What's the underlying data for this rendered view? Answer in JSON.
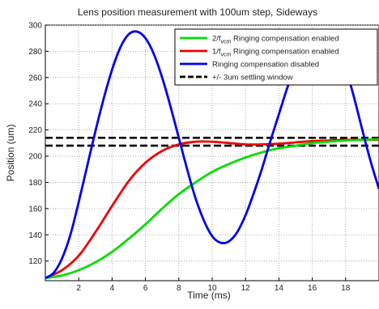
{
  "chart_data": {
    "type": "line",
    "title": "Lens position measurement with 100um step, Sideways",
    "xlabel": "Time (ms)",
    "ylabel": "Position (um)",
    "xlim": [
      0,
      20
    ],
    "ylim": [
      105,
      300
    ],
    "x_ticks": [
      2,
      4,
      6,
      8,
      10,
      12,
      14,
      16,
      18
    ],
    "y_ticks": [
      120,
      140,
      160,
      180,
      200,
      220,
      240,
      260,
      280,
      300
    ],
    "grid": true,
    "legend_position": "top-right",
    "series": [
      {
        "name_prefix": "2/f",
        "name_sub": "vcm",
        "name_suffix": " Ringing compensation enabled",
        "color": "#00dd00",
        "style": "solid",
        "x": [
          0,
          1,
          2,
          3,
          4,
          5,
          6,
          7,
          8,
          9,
          10,
          11,
          12,
          13,
          14,
          15,
          16,
          17,
          18,
          19,
          20
        ],
        "y": [
          107,
          109,
          113,
          119,
          127,
          137,
          148,
          160,
          171,
          180,
          188,
          194,
          199,
          203,
          206,
          208,
          210,
          211,
          212,
          212.5,
          213
        ]
      },
      {
        "name_prefix": "1/f",
        "name_sub": "vcm",
        "name_suffix": " Ringing compensation enabled",
        "color": "#ee0000",
        "style": "solid",
        "x": [
          0,
          1,
          2,
          3,
          4,
          5,
          6,
          7,
          8,
          9,
          10,
          11,
          12,
          13,
          14,
          15,
          16,
          17,
          18,
          19,
          20
        ],
        "y": [
          107,
          113,
          124,
          142,
          162,
          181,
          195,
          204,
          209,
          211,
          211,
          210,
          209,
          209,
          209.5,
          210.5,
          211.5,
          212,
          212.5,
          212.5,
          212.5
        ]
      },
      {
        "name": "Ringing compensation disabled",
        "color": "#0000ee",
        "style": "solid",
        "x": [
          0,
          0.5,
          1,
          1.5,
          2,
          2.5,
          3,
          3.5,
          4,
          4.5,
          5,
          5.5,
          6,
          6.5,
          7,
          7.5,
          8,
          8.5,
          9,
          9.5,
          10,
          10.5,
          11,
          11.5,
          12,
          12.5,
          13,
          13.5,
          14,
          14.5,
          15,
          15.5,
          16,
          16.5,
          17,
          17.5,
          18,
          18.5,
          19,
          19.5,
          20
        ],
        "y": [
          107,
          111,
          122,
          140,
          165,
          192,
          219,
          244,
          266,
          283,
          293,
          295,
          290,
          278,
          260,
          238,
          214,
          190,
          168,
          151,
          139,
          134,
          135,
          142,
          155,
          172,
          191,
          212,
          232,
          252,
          268,
          281,
          289,
          293,
          292,
          284,
          267,
          245,
          220,
          196,
          175
        ]
      },
      {
        "name": "+/- 3um settling window",
        "color": "#000000",
        "style": "dashed",
        "y_upper": 214,
        "y_lower": 208
      }
    ]
  }
}
